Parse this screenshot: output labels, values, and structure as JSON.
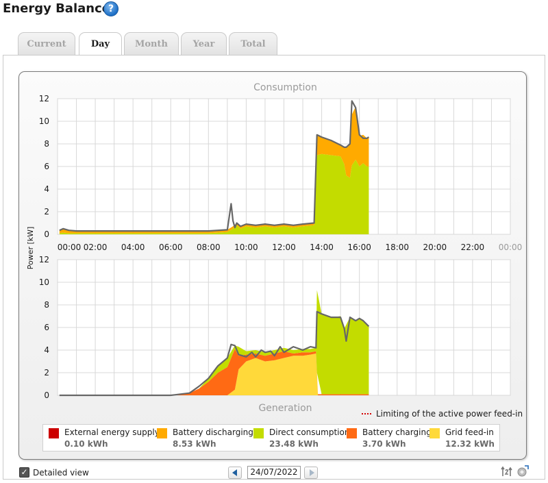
{
  "header": {
    "title": "Energy Balance",
    "help_icon": "?"
  },
  "tabs": [
    {
      "label": "Current",
      "active": false
    },
    {
      "label": "Day",
      "active": true
    },
    {
      "label": "Month",
      "active": false
    },
    {
      "label": "Year",
      "active": false
    },
    {
      "label": "Total",
      "active": false
    }
  ],
  "chart_data": [
    {
      "type": "area",
      "title": "Consumption",
      "ylabel": "Power [kW]",
      "ylim": [
        0,
        12
      ],
      "yticks": [
        "0",
        "2",
        "4",
        "6",
        "8",
        "10",
        "12"
      ],
      "xticks": [
        "00:00",
        "02:00",
        "04:00",
        "06:00",
        "08:00",
        "10:00",
        "12:00",
        "14:00",
        "16:00",
        "18:00",
        "20:00",
        "22:00",
        "00:00"
      ],
      "xlim_hours": [
        0,
        24
      ],
      "grid": true,
      "series": [
        {
          "name": "Direct consumption",
          "color": "#c3dc00",
          "x": [
            0.1,
            0.3,
            0.6,
            1,
            2,
            3,
            4,
            5,
            6,
            7,
            8,
            9,
            9.3,
            9.5,
            9.7,
            10,
            10.5,
            11,
            11.5,
            12,
            12.5,
            13,
            13.6,
            13.75,
            14,
            14.5,
            15,
            15.2,
            15.3,
            15.5,
            15.6,
            15.8,
            16,
            16.2,
            16.4,
            16.5
          ],
          "values": [
            0.1,
            0.15,
            0.1,
            0.1,
            0.1,
            0.1,
            0.1,
            0.1,
            0.1,
            0.1,
            0.1,
            0.2,
            0.5,
            0.8,
            0.5,
            0.7,
            0.6,
            0.7,
            0.6,
            0.7,
            0.6,
            0.7,
            0.8,
            7.0,
            7.1,
            7.0,
            6.9,
            6.2,
            5.2,
            5.0,
            6.1,
            6.6,
            6.0,
            6.3,
            6.0,
            6.0
          ]
        },
        {
          "name": "Battery discharging",
          "color": "#ffaa00",
          "x": [
            0.1,
            0.3,
            0.6,
            1,
            2,
            3,
            4,
            5,
            6,
            7,
            8,
            9,
            9.3,
            9.5,
            9.7,
            10,
            10.5,
            11,
            11.5,
            12,
            12.5,
            13,
            13.6,
            13.75,
            14,
            14.5,
            15,
            15.2,
            15.3,
            15.5,
            15.6,
            15.8,
            16,
            16.2,
            16.4,
            16.5
          ],
          "values": [
            0.25,
            0.35,
            0.25,
            0.2,
            0.2,
            0.2,
            0.2,
            0.2,
            0.2,
            0.2,
            0.2,
            0.2,
            0.2,
            0.2,
            0.2,
            0.2,
            0.2,
            0.2,
            0.2,
            0.2,
            0.2,
            0.2,
            0.2,
            1.8,
            1.5,
            1.3,
            1.0,
            1.5,
            2.5,
            3.0,
            4.5,
            4.7,
            2.7,
            2.5,
            2.5,
            2.6
          ]
        }
      ],
      "total_line": {
        "x": [
          0.1,
          0.3,
          0.6,
          1,
          2,
          3,
          4,
          5,
          6,
          7,
          8,
          9,
          9.2,
          9.3,
          9.4,
          9.5,
          9.7,
          10,
          10.5,
          11,
          11.5,
          12,
          12.5,
          13,
          13.6,
          13.75,
          14,
          14.5,
          15,
          15.2,
          15.3,
          15.5,
          15.6,
          15.8,
          16,
          16.2,
          16.4,
          16.5
        ],
        "values": [
          0.35,
          0.5,
          0.35,
          0.3,
          0.3,
          0.3,
          0.3,
          0.3,
          0.3,
          0.3,
          0.3,
          0.4,
          2.7,
          1.2,
          0.6,
          1.0,
          0.7,
          0.9,
          0.8,
          0.9,
          0.8,
          0.9,
          0.8,
          0.9,
          1.0,
          8.8,
          8.6,
          8.3,
          7.9,
          7.7,
          7.7,
          8.0,
          11.8,
          11.2,
          8.8,
          8.5,
          8.5,
          8.6
        ]
      }
    },
    {
      "type": "area",
      "title": "Generation",
      "ylim": [
        0,
        12
      ],
      "yticks": [
        "0",
        "2",
        "4",
        "6",
        "8",
        "10",
        "12"
      ],
      "xlim_hours": [
        0,
        24
      ],
      "grid": true,
      "series": [
        {
          "name": "Grid feed-in",
          "color": "#ffd93a",
          "x": [
            0.1,
            6,
            7,
            8,
            9,
            9.4,
            9.6,
            10,
            10.5,
            11,
            11.5,
            12,
            12.5,
            13,
            13.4,
            13.7,
            13.8,
            16.5
          ],
          "values": [
            0,
            0,
            0,
            0,
            0,
            0.5,
            2.3,
            3.0,
            3.3,
            3.0,
            3.1,
            3.3,
            3.5,
            3.5,
            3.6,
            3.7,
            0,
            0
          ]
        },
        {
          "name": "Battery charging",
          "color": "#ff6a14",
          "x": [
            0.1,
            6,
            7,
            7.5,
            8,
            8.5,
            9,
            9.4,
            9.6,
            10,
            10.5,
            11,
            11.5,
            12,
            12.5,
            13,
            13.4,
            13.7,
            13.8,
            16.5
          ],
          "values": [
            0,
            0,
            0.2,
            0.6,
            1.2,
            2.0,
            2.5,
            3.6,
            1.2,
            0.6,
            0.4,
            0.5,
            0.6,
            0.6,
            0.2,
            0.3,
            0.2,
            0.2,
            0.1,
            0.1
          ]
        },
        {
          "name": "Direct consumption",
          "color": "#c3dc00",
          "x": [
            0.1,
            6,
            7,
            7.5,
            8,
            8.5,
            9,
            9.4,
            9.6,
            10,
            10.5,
            11,
            11.5,
            12,
            12.5,
            13,
            13.4,
            13.7,
            13.75,
            14,
            14.5,
            15,
            15.2,
            15.5,
            15.8,
            16,
            16.2,
            16.5
          ],
          "values": [
            0,
            0,
            0,
            0,
            0.3,
            0.6,
            0.8,
            0.3,
            0.8,
            0.3,
            0.3,
            0.3,
            0.3,
            0.3,
            0.3,
            0.3,
            0.3,
            0.3,
            7.3,
            7.1,
            6.8,
            6.9,
            5.8,
            6.8,
            6.5,
            6.7,
            6.5,
            6.0
          ]
        }
      ],
      "total_line": {
        "x": [
          0.1,
          6,
          7,
          7.5,
          8,
          8.5,
          9,
          9.2,
          9.4,
          9.6,
          10,
          10.3,
          10.5,
          10.8,
          11,
          11.3,
          11.5,
          11.8,
          12,
          12.5,
          13,
          13.4,
          13.7,
          13.75,
          14,
          14.5,
          15,
          15.2,
          15.3,
          15.5,
          15.8,
          16,
          16.2,
          16.5
        ],
        "values": [
          0,
          0,
          0.2,
          0.8,
          1.5,
          2.6,
          3.3,
          4.5,
          4.4,
          3.6,
          3.4,
          3.8,
          3.4,
          4.0,
          3.8,
          3.9,
          3.5,
          4.3,
          3.8,
          4.3,
          4.0,
          4.3,
          4.2,
          7.4,
          7.2,
          6.9,
          6.9,
          5.9,
          4.8,
          6.9,
          6.6,
          6.8,
          6.6,
          6.1
        ]
      }
    }
  ],
  "limit_note": "Limiting of the active power feed-in",
  "legend": [
    {
      "label": "External energy supply",
      "value": "0.10 kWh",
      "color": "#cc0000"
    },
    {
      "label": "Battery discharging",
      "value": "8.53 kWh",
      "color": "#ffaa00"
    },
    {
      "label": "Direct consumption",
      "value": "23.48 kWh",
      "color": "#c3dc00"
    },
    {
      "label": "Battery charging",
      "value": "3.70 kWh",
      "color": "#ff6a14"
    },
    {
      "label": "Grid feed-in",
      "value": "12.32 kWh",
      "color": "#ffd93a"
    }
  ],
  "footer": {
    "detailed_view_label": "Detailed view",
    "detailed_view_checked": true,
    "date_value": "24/07/2022"
  },
  "colors": {
    "accent": "#1d6fc6",
    "line": "#666666",
    "grid": "#d8d8d8",
    "limit": "#d40000"
  }
}
